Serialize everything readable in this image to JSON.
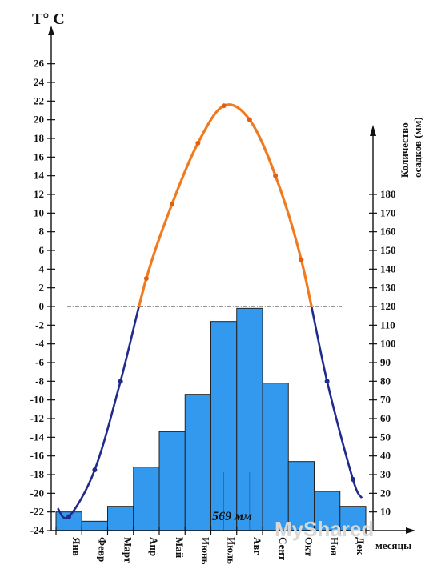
{
  "chart_data": {
    "type": "bar+line",
    "left_axis_title": "T° C",
    "right_axis_title_line1": "Количество",
    "right_axis_title_line2": "осадков (мм)",
    "x_axis_title": "месяцы",
    "annotation": "569 мм",
    "watermark": "MyShared",
    "months": [
      "Янв",
      "Февр",
      "Март",
      "Апр",
      "Май",
      "Июнь",
      "Июль",
      "Авг",
      "Сент",
      "Окт",
      "Ноя",
      "Дек"
    ],
    "temperature": {
      "ylim": [
        -24,
        26
      ],
      "ticks": [
        26,
        24,
        22,
        20,
        18,
        16,
        14,
        12,
        10,
        8,
        6,
        4,
        2,
        0,
        -2,
        -4,
        -6,
        -8,
        -10,
        -12,
        -14,
        -16,
        -18,
        -20,
        -22,
        -24
      ],
      "values": [
        -22.5,
        -17.5,
        -8.0,
        3.0,
        11.0,
        17.5,
        21.5,
        20.0,
        14.0,
        5.0,
        -8.0,
        -18.5
      ],
      "positive_color": "#f07a1e",
      "negative_color": "#1f2a8c",
      "zero_line": "dash-dot"
    },
    "precipitation": {
      "ylim": [
        0,
        190
      ],
      "ticks": [
        180,
        170,
        160,
        150,
        140,
        130,
        120,
        110,
        100,
        90,
        80,
        70,
        60,
        50,
        40,
        30,
        20,
        10
      ],
      "values": [
        10,
        5,
        13,
        34,
        53,
        73,
        112,
        119,
        79,
        37,
        21,
        13
      ],
      "color": "#3399ee"
    }
  }
}
